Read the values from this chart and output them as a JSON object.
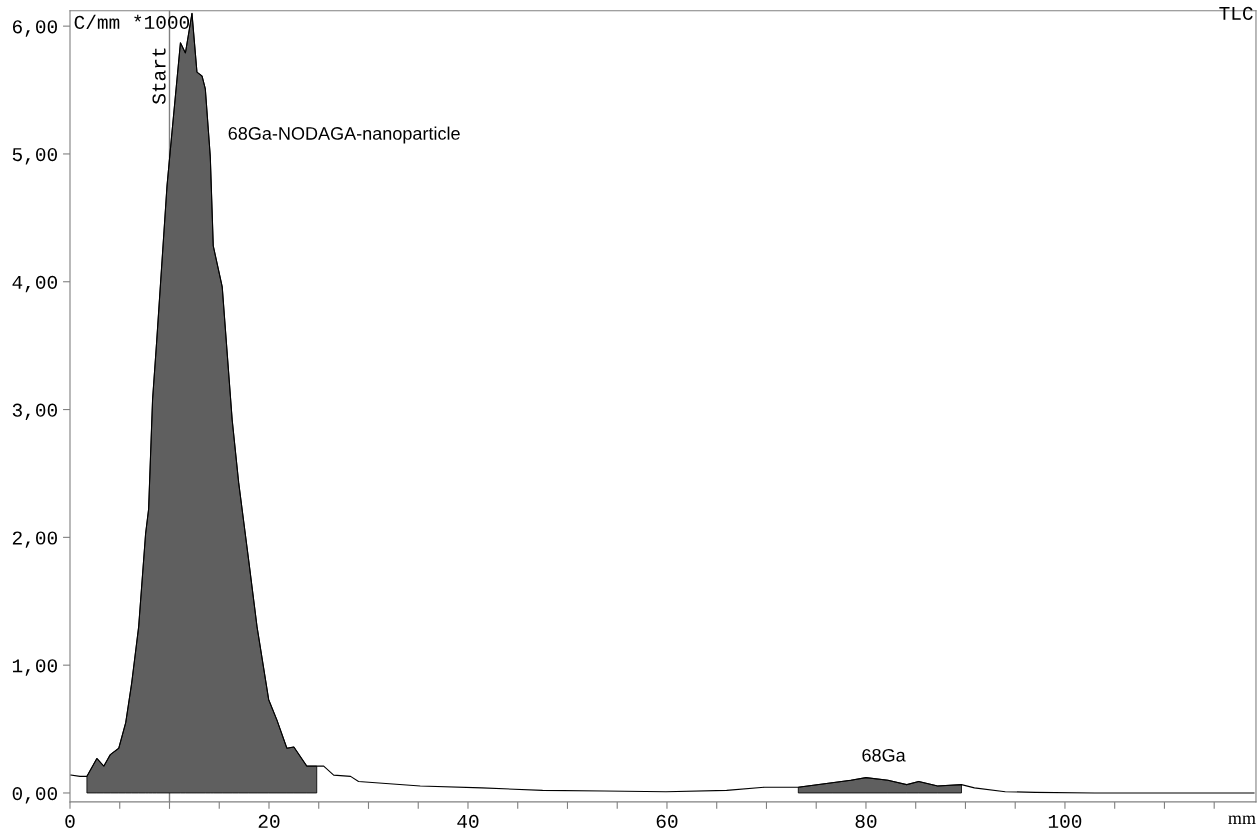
{
  "chart_data": {
    "type": "line",
    "xlabel": "mm",
    "ylabel": "C/mm *1000",
    "xlim": [
      0,
      119.2
    ],
    "ylim": [
      -0.07,
      6.12
    ],
    "xticks": [
      0,
      {
        "value": 5,
        "label": null
      },
      {
        "value": 10,
        "label": null
      },
      {
        "value": 15,
        "label": null
      },
      20,
      {
        "value": 25,
        "label": null
      },
      {
        "value": 30,
        "label": null
      },
      {
        "value": 35,
        "label": null
      },
      40,
      {
        "value": 45,
        "label": null
      },
      {
        "value": 50,
        "label": null
      },
      {
        "value": 55,
        "label": null
      },
      60,
      {
        "value": 65,
        "label": null
      },
      {
        "value": 70,
        "label": null
      },
      {
        "value": 75,
        "label": null
      },
      80,
      {
        "value": 85,
        "label": null
      },
      {
        "value": 90,
        "label": null
      },
      {
        "value": 95,
        "label": null
      },
      100,
      {
        "value": 105,
        "label": null
      },
      {
        "value": 110,
        "label": null
      },
      {
        "value": 115,
        "label": null
      }
    ],
    "yticks": [
      {
        "value": 0,
        "label": "0,00"
      },
      {
        "value": 1,
        "label": "1,00"
      },
      {
        "value": 2,
        "label": "2,00"
      },
      {
        "value": 3,
        "label": "3,00"
      },
      {
        "value": 4,
        "label": "4,00"
      },
      {
        "value": 5,
        "label": "5,00"
      },
      {
        "value": 6,
        "label": "6,00"
      }
    ],
    "grid": false,
    "legend": false,
    "ref_lines": [
      {
        "axis": "x",
        "value": 10,
        "label": "Start",
        "color": "#808080"
      }
    ],
    "annotations": [
      "TLC",
      "68Ga-NODAGA-nanoparticle",
      "68Ga"
    ],
    "series": [
      {
        "color": "#000000",
        "x": [
          0.1,
          1.0,
          1.7,
          2.7,
          3.4,
          4.05,
          4.9,
          5.6,
          6.2,
          6.9,
          7.6,
          7.9,
          8.3,
          8.7,
          9.75,
          10.25,
          11.1,
          11.6,
          12.26,
          12.76,
          13.27,
          13.6,
          14.1,
          14.4,
          15.3,
          16.3,
          16.95,
          17.96,
          18.8,
          19.97,
          20.8,
          21.8,
          22.5,
          23.8,
          24.8,
          25.5,
          26.5,
          28.2,
          29,
          35.2,
          41.4,
          47.5,
          53.7,
          59.9,
          66,
          69.8,
          73.2,
          76.6,
          78.5,
          80,
          82.2,
          84.1,
          85.3,
          87.2,
          89.6,
          90.9,
          94,
          97,
          103,
          119
        ],
        "values": [
          0.14,
          0.13,
          0.13,
          0.27,
          0.21,
          0.3,
          0.35,
          0.55,
          0.86,
          1.3,
          2.03,
          2.22,
          3.08,
          3.52,
          4.75,
          5.17,
          5.87,
          5.79,
          6.1,
          5.64,
          5.61,
          5.51,
          4.98,
          4.28,
          3.96,
          2.92,
          2.43,
          1.82,
          1.3,
          0.73,
          0.57,
          0.35,
          0.36,
          0.21,
          0.21,
          0.21,
          0.14,
          0.13,
          0.09,
          0.055,
          0.04,
          0.02,
          0.015,
          0.01,
          0.02,
          0.045,
          0.045,
          0.08,
          0.1,
          0.12,
          0.1,
          0.065,
          0.09,
          0.055,
          0.065,
          0.04,
          0.01,
          0.005,
          0,
          0
        ]
      },
      {
        "type": "area",
        "color": "#5f5f5f",
        "x": [
          1.7,
          2.7,
          3.4,
          4.05,
          4.9,
          5.6,
          6.2,
          6.9,
          7.6,
          7.9,
          8.3,
          8.7,
          9.75,
          10.25,
          11.1,
          11.6,
          12.26,
          12.76,
          13.27,
          13.6,
          14.1,
          14.4,
          15.3,
          16.3,
          16.95,
          17.96,
          18.8,
          19.97,
          20.8,
          21.8,
          22.5,
          23.8,
          24.8
        ],
        "values": [
          0.13,
          0.27,
          0.21,
          0.3,
          0.35,
          0.55,
          0.86,
          1.3,
          2.03,
          2.22,
          3.08,
          3.52,
          4.75,
          5.17,
          5.87,
          5.79,
          6.1,
          5.64,
          5.61,
          5.51,
          4.98,
          4.28,
          3.96,
          2.92,
          2.43,
          1.82,
          1.3,
          0.73,
          0.57,
          0.35,
          0.36,
          0.21,
          0.21
        ]
      },
      {
        "type": "area",
        "color": "#5f5f5f",
        "x": [
          73.2,
          76.6,
          78.5,
          80,
          82.2,
          84.1,
          85.3,
          87.2,
          89.6
        ],
        "values": [
          0.045,
          0.08,
          0.1,
          0.12,
          0.1,
          0.065,
          0.09,
          0.055,
          0.065
        ]
      }
    ]
  }
}
